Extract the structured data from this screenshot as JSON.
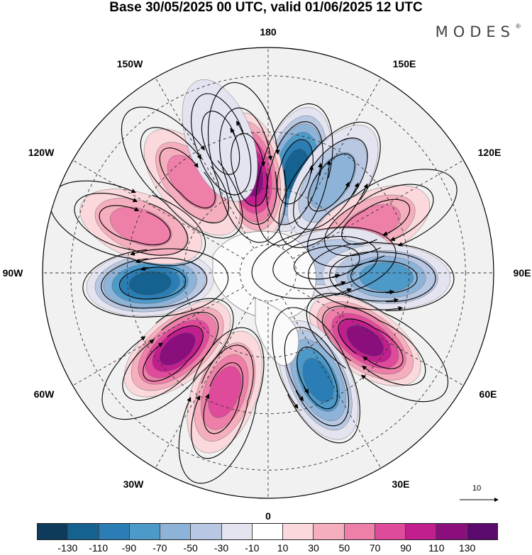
{
  "title": "Base 30/05/2025 00 UTC, valid 01/06/2025 12 UTC",
  "brand": {
    "text": "MODES",
    "mark": "®"
  },
  "longitude_labels": [
    {
      "id": "180",
      "text": "180"
    },
    {
      "id": "150E",
      "text": "150E"
    },
    {
      "id": "120E",
      "text": "120E"
    },
    {
      "id": "90E",
      "text": "90E"
    },
    {
      "id": "60E",
      "text": "60E"
    },
    {
      "id": "30E",
      "text": "30E"
    },
    {
      "id": "0",
      "text": "0"
    },
    {
      "id": "30W",
      "text": "30W"
    },
    {
      "id": "60W",
      "text": "60W"
    },
    {
      "id": "90W",
      "text": "90W"
    },
    {
      "id": "120W",
      "text": "120W"
    },
    {
      "id": "150W",
      "text": "150W"
    }
  ],
  "reference_vector": {
    "label": "10"
  },
  "colorbar": {
    "colors": [
      "#0e3a5c",
      "#15618f",
      "#2a7db5",
      "#4d99c8",
      "#8eb3d8",
      "#b9c8e2",
      "#e3e4f0",
      "#ffffff",
      "#fad8dc",
      "#f4aebd",
      "#ee7fa9",
      "#e04a9b",
      "#c11f8e",
      "#8a0f7d",
      "#5a0a6c"
    ],
    "labels": [
      "-130",
      "-110",
      "-90",
      "-70",
      "-50",
      "-30",
      "-10",
      "10",
      "30",
      "50",
      "70",
      "90",
      "110",
      "130"
    ]
  },
  "chart_data": {
    "type": "heatmap",
    "projection": "north-polar-stereographic",
    "field": "anomaly",
    "levels": [
      -130,
      -110,
      -90,
      -70,
      -50,
      -30,
      -10,
      10,
      30,
      50,
      70,
      90,
      110,
      130
    ],
    "anomaly_centers": [
      {
        "lon": 165,
        "lat": 52,
        "value": -125
      },
      {
        "lon": -170,
        "lat": 55,
        "value": 115
      },
      {
        "lon": 145,
        "lat": 50,
        "value": -65
      },
      {
        "lon": 115,
        "lat": 50,
        "value": 65
      },
      {
        "lon": 100,
        "lat": 68,
        "value": -40
      },
      {
        "lon": 88,
        "lat": 48,
        "value": -75
      },
      {
        "lon": 55,
        "lat": 48,
        "value": 115
      },
      {
        "lon": 25,
        "lat": 48,
        "value": -95
      },
      {
        "lon": -20,
        "lat": 45,
        "value": 70
      },
      {
        "lon": -50,
        "lat": 48,
        "value": 110
      },
      {
        "lon": -85,
        "lat": 48,
        "value": -125
      },
      {
        "lon": -110,
        "lat": 42,
        "value": 65
      },
      {
        "lon": -140,
        "lat": 48,
        "value": 60
      },
      {
        "lon": -160,
        "lat": 40,
        "value": -25
      }
    ]
  }
}
